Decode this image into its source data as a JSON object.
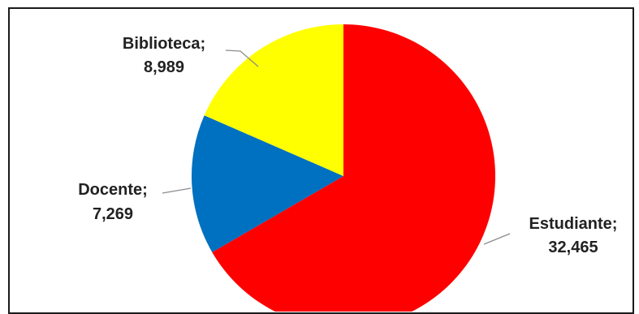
{
  "chart_data": {
    "type": "pie",
    "slices": [
      {
        "name": "Estudiante",
        "value": 32465,
        "label_name": "Estudiante;",
        "label_value": "32,465",
        "color": "#ff0000"
      },
      {
        "name": "Docente",
        "value": 7269,
        "label_name": "Docente;",
        "label_value": "7,269",
        "color": "#0070c0"
      },
      {
        "name": "Biblioteca",
        "value": 8989,
        "label_name": "Biblioteca;",
        "label_value": "8,989",
        "color": "#ffff00"
      }
    ],
    "start_angle_deg": 0,
    "direction": "clockwise",
    "legend": "none",
    "data_labels": "name; value with leader lines"
  }
}
